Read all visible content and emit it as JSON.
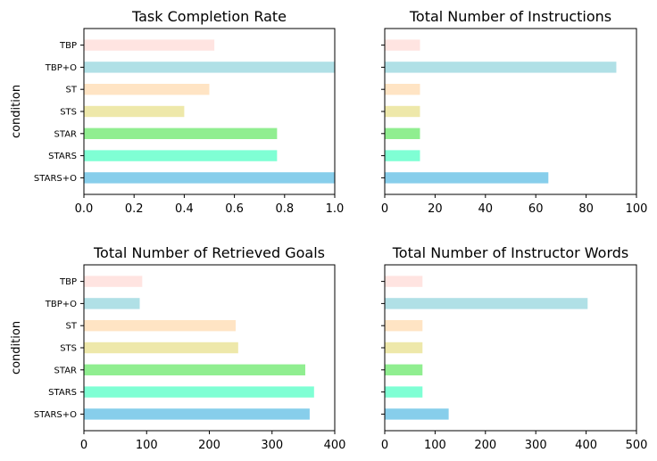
{
  "chart_data": [
    {
      "type": "bar",
      "orientation": "horizontal",
      "title": "Task Completion Rate",
      "ylabel": "condition",
      "categories": [
        "STARS+O",
        "STARS",
        "STAR",
        "STS",
        "ST",
        "TBP+O",
        "TBP"
      ],
      "colors": [
        "#87CEEB",
        "#7FFFD4",
        "#90EE90",
        "#EEE8AA",
        "#FFE4C4",
        "#B0E0E6",
        "#FFE4E1"
      ],
      "values": [
        1.0,
        0.77,
        0.77,
        0.4,
        0.5,
        1.0,
        0.52
      ],
      "xlim": [
        0,
        1.0
      ],
      "xticks": [
        "0.0",
        "0.2",
        "0.4",
        "0.6",
        "0.8",
        "1.0"
      ],
      "show_ytick_labels": true
    },
    {
      "type": "bar",
      "orientation": "horizontal",
      "title": "Total Number of Instructions",
      "ylabel": "",
      "categories": [
        "STARS+O",
        "STARS",
        "STAR",
        "STS",
        "ST",
        "TBP+O",
        "TBP"
      ],
      "colors": [
        "#87CEEB",
        "#7FFFD4",
        "#90EE90",
        "#EEE8AA",
        "#FFE4C4",
        "#B0E0E6",
        "#FFE4E1"
      ],
      "values": [
        65,
        14,
        14,
        14,
        14,
        92,
        14
      ],
      "xlim": [
        0,
        100
      ],
      "xticks": [
        "0",
        "20",
        "40",
        "60",
        "80",
        "100"
      ],
      "show_ytick_labels": false
    },
    {
      "type": "bar",
      "orientation": "horizontal",
      "title": "Total Number of Retrieved Goals",
      "ylabel": "condition",
      "categories": [
        "STARS+O",
        "STARS",
        "STAR",
        "STS",
        "ST",
        "TBP+O",
        "TBP"
      ],
      "colors": [
        "#87CEEB",
        "#7FFFD4",
        "#90EE90",
        "#EEE8AA",
        "#FFE4C4",
        "#B0E0E6",
        "#FFE4E1"
      ],
      "values": [
        360,
        367,
        353,
        246,
        242,
        89,
        93
      ],
      "xlim": [
        0,
        400
      ],
      "xticks": [
        "0",
        "100",
        "200",
        "300",
        "400"
      ],
      "show_ytick_labels": true
    },
    {
      "type": "bar",
      "orientation": "horizontal",
      "title": "Total Number of Instructor Words",
      "ylabel": "",
      "categories": [
        "STARS+O",
        "STARS",
        "STAR",
        "STS",
        "ST",
        "TBP+O",
        "TBP"
      ],
      "colors": [
        "#87CEEB",
        "#7FFFD4",
        "#90EE90",
        "#EEE8AA",
        "#FFE4C4",
        "#B0E0E6",
        "#FFE4E1"
      ],
      "values": [
        127,
        75,
        75,
        75,
        75,
        403,
        75
      ],
      "xlim": [
        0,
        500
      ],
      "xticks": [
        "0",
        "100",
        "200",
        "300",
        "400",
        "500"
      ],
      "show_ytick_labels": false
    }
  ]
}
